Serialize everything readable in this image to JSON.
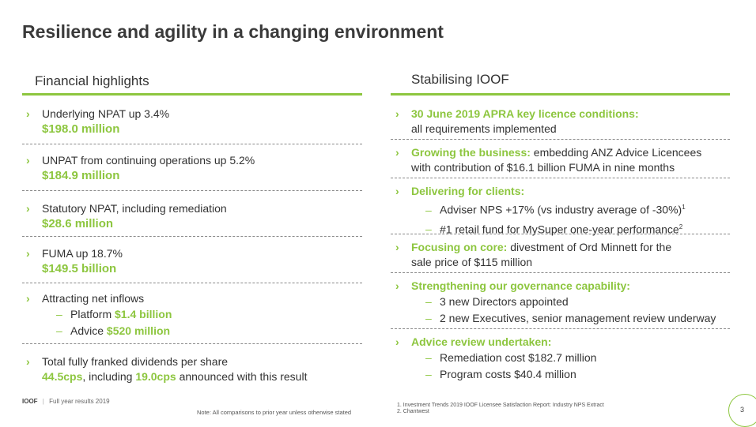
{
  "title": "Resilience and agility in a changing environment",
  "left": {
    "heading": "Financial highlights",
    "items": [
      {
        "text": "Underlying NPAT up 3.4%",
        "value": "$198.0 million"
      },
      {
        "text": "UNPAT from continuing operations up 5.2%",
        "value": "$184.9 million"
      },
      {
        "text": "Statutory NPAT, including remediation",
        "value": "$28.6 million"
      },
      {
        "text": "FUMA  up 18.7%",
        "value": "$149.5 billion"
      },
      {
        "text": "Attracting net inflows",
        "subs": [
          {
            "label": "Platform",
            "value": "$1.4 billion"
          },
          {
            "label": "Advice",
            "value": "$520 million"
          }
        ]
      },
      {
        "text": "Total fully franked dividends per share",
        "line2_a": "44.5cps",
        "line2_b": ", including ",
        "line2_c": "19.0cps",
        "line2_d": " announced with this result"
      }
    ]
  },
  "right": {
    "heading": "Stabilising IOOF",
    "items": [
      {
        "bold": "30 June 2019 APRA key licence conditions:",
        "rest": "all requirements implemented"
      },
      {
        "bold": "Growing the business:",
        "rest": " embedding ANZ Advice Licencees",
        "line2": "with contribution of $16.1 billion FUMA in nine months"
      },
      {
        "bold": "Delivering for clients:",
        "subs": [
          {
            "text": "Adviser NPS +17% (vs industry average of -30%)",
            "sup": "1"
          },
          {
            "text": "#1 retail fund for MySuper one-year performance",
            "sup": "2"
          }
        ]
      },
      {
        "bold": "Focusing on core:",
        "rest": " divestment of Ord Minnett for the",
        "line2": "sale price of $115 million"
      },
      {
        "bold": "Strengthening our governance capability:",
        "subs": [
          {
            "text": "3 new Directors appointed"
          },
          {
            "text": "2 new Executives, senior management review underway"
          }
        ]
      },
      {
        "bold": "Advice review undertaken:",
        "subs": [
          {
            "text": "Remediation cost $182.7 million"
          },
          {
            "text": "Program costs $40.4 million"
          }
        ]
      }
    ]
  },
  "footer": {
    "brand": "IOOF",
    "separator": "|",
    "doc": "Full year results 2019",
    "note": "Note: All comparisons to prior year unless otherwise stated",
    "footnote1": "1.    Investment Trends 2019 IOOF Licensee Satisfaction Report: Industry NPS Extract",
    "footnote2": "2.    Chantwest",
    "page": "3"
  },
  "colors": {
    "accent": "#8dc63f",
    "text": "#333333"
  }
}
